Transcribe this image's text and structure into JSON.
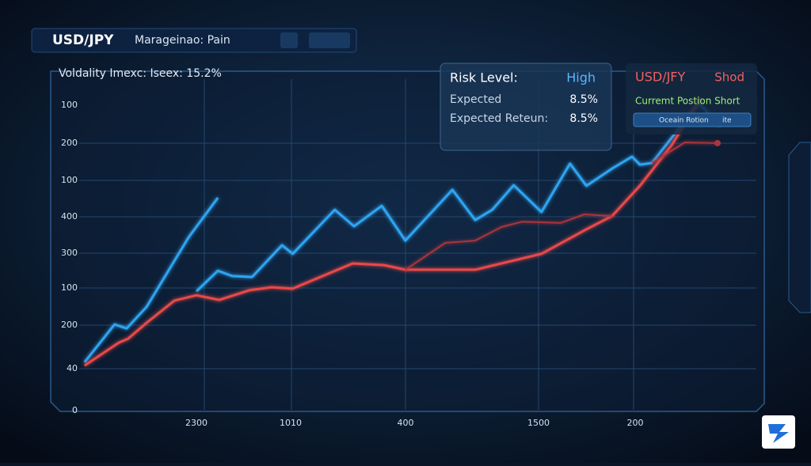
{
  "header": {
    "pair": "USD/JPY",
    "subtitle": "Marageinao: Pain"
  },
  "volatility": "Voldality Imexc: Iseex: 15.2%",
  "risk_panel": {
    "risk_label": "Risk Level:",
    "risk_value": "High",
    "expected_label": "Expected",
    "expected_value": "8.5%",
    "return_label": "Expected Reteun:",
    "return_value": "8.5%"
  },
  "position_panel": {
    "pair": "USD/JFY",
    "side": "Shod",
    "position": "Curremt Postion Short",
    "button": "Oceain Rotion",
    "button_tail": "ite"
  },
  "chart_data": {
    "type": "line",
    "xlim": [
      0,
      100
    ],
    "ylim": [
      0,
      100
    ],
    "y_labels": [
      "0",
      "40",
      "200",
      "100",
      "300",
      "400",
      "100",
      "200",
      "100"
    ],
    "x_labels": [
      "2300",
      "1010",
      "400",
      "1500",
      "200"
    ],
    "series": [
      {
        "color": "#2ea4f2",
        "x": [
          5.2,
          9.4,
          11.1,
          13.9,
          19.8,
          23.9,
          null,
          20.9,
          23.9,
          25.9,
          28.7,
          32.9,
          34.4,
          40.3,
          43.0,
          46.9,
          50.2,
          56.8,
          60.0,
          62.4,
          65.4,
          69.3,
          73.3,
          75.6,
          79.2,
          82.0,
          83.1,
          84.8,
          91.4,
          94.2
        ],
        "values": [
          14.6,
          26.0,
          24.8,
          31.3,
          52.3,
          64.2,
          null,
          36.0,
          42.2,
          40.6,
          40.3,
          49.9,
          47.3,
          60.6,
          55.6,
          61.8,
          51.3,
          66.6,
          57.5,
          60.6,
          68.0,
          59.9,
          74.5,
          67.8,
          73.0,
          76.6,
          74.2,
          74.7,
          92.8,
          86.2
        ]
      },
      {
        "color": "#e84a4a",
        "x": [
          5.2,
          10.0,
          11.3,
          13.9,
          17.8,
          20.9,
          24.1,
          28.3,
          31.4,
          34.4,
          42.8,
          47.2,
          50.2,
          60.0,
          69.3,
          75.6,
          79.2,
          83.1,
          87.6,
          91.4
        ],
        "values": [
          13.6,
          20.5,
          21.7,
          26.5,
          33.2,
          34.8,
          33.4,
          36.3,
          37.2,
          36.8,
          44.4,
          43.9,
          42.5,
          42.5,
          47.3,
          54.7,
          58.7,
          67.8,
          80.2,
          93.6
        ]
      },
      {
        "color": "#a8363c",
        "x": [
          50.2,
          55.8,
          60.0,
          63.7,
          66.6,
          72.0,
          75.3,
          79.2,
          null,
          84.8,
          89.4,
          94.0
        ],
        "values": [
          42.5,
          50.6,
          51.3,
          55.4,
          57.0,
          56.6,
          59.2,
          58.7,
          null,
          74.7,
          80.9,
          80.7
        ]
      }
    ]
  }
}
